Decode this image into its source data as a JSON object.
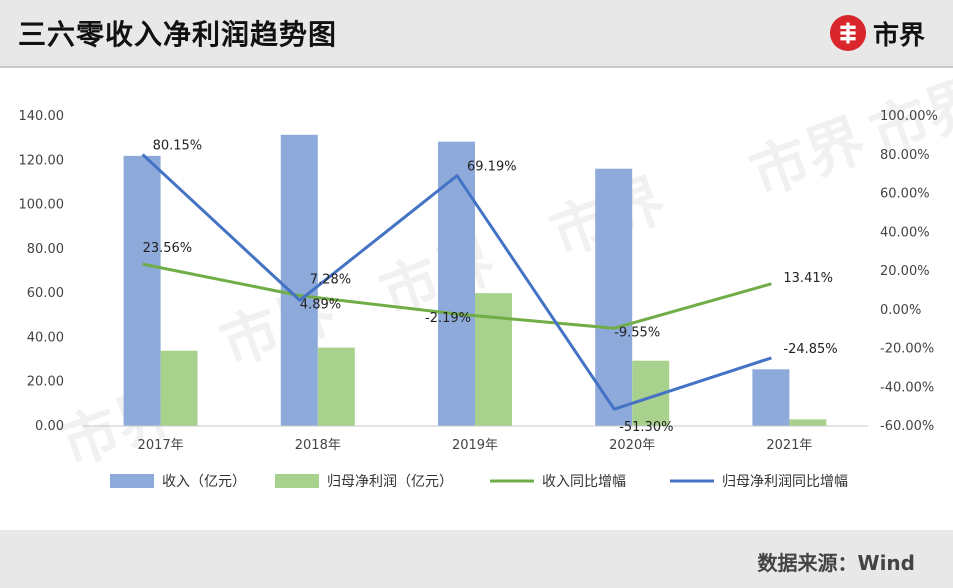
{
  "header": {
    "title": "三六零收入净利润趋势图",
    "logo_text": "市界"
  },
  "footer": {
    "source": "数据来源：Wind"
  },
  "watermark": "市界",
  "chart_data": {
    "type": "bar-line-combo",
    "title": "三六零收入净利润趋势图",
    "categories": [
      "2017年",
      "2018年",
      "2019年",
      "2020年",
      "2021年"
    ],
    "y_left": {
      "min": 0,
      "max": 140,
      "step": 20,
      "ticks": [
        "0.00",
        "20.00",
        "40.00",
        "60.00",
        "80.00",
        "100.00",
        "120.00",
        "140.00"
      ]
    },
    "y_right": {
      "min": -60,
      "max": 100,
      "step": 20,
      "ticks": [
        "-60.00%",
        "-40.00%",
        "-20.00%",
        "0.00%",
        "20.00%",
        "40.00%",
        "60.00%",
        "80.00%",
        "100.00%"
      ]
    },
    "grid": false,
    "legend_position": "bottom",
    "series": [
      {
        "name": "收入（亿元）",
        "type": "bar",
        "axis": "left",
        "color": "#8eaadb",
        "values": [
          122.0,
          131.5,
          128.4,
          116.2,
          25.6
        ]
      },
      {
        "name": "归母净利润（亿元）",
        "type": "bar",
        "axis": "left",
        "color": "#a9d18e",
        "values": [
          34.0,
          35.4,
          60.0,
          29.5,
          3.0
        ]
      },
      {
        "name": "收入同比增幅",
        "type": "line",
        "axis": "right",
        "color": "#70ad47",
        "values": [
          23.56,
          7.28,
          -2.19,
          -9.55,
          13.41
        ],
        "labels": [
          "23.56%",
          "7.28%",
          "-2.19%",
          "-9.55%",
          "13.41%"
        ]
      },
      {
        "name": "归母净利润同比增幅",
        "type": "line",
        "axis": "right",
        "color": "#4472c4",
        "values": [
          80.15,
          4.89,
          69.19,
          -51.3,
          -24.85
        ],
        "labels": [
          "80.15%",
          "4.89%",
          "69.19%",
          "-51.30%",
          "-24.85%"
        ]
      }
    ]
  }
}
